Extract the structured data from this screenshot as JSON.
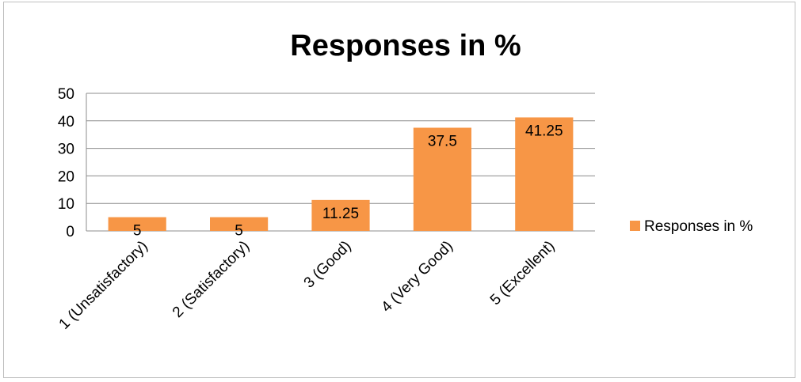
{
  "chart_data": {
    "type": "bar",
    "title": "Responses in %",
    "categories": [
      "1 (Unsatisfactory)",
      "2 (Satisfactory)",
      "3 (Good)",
      "4 (Very Good)",
      "5 (Excellent)"
    ],
    "series": [
      {
        "name": "Responses in %",
        "values": [
          5,
          5,
          11.25,
          37.5,
          41.25
        ],
        "data_labels": [
          "5",
          "5",
          "11.25",
          "37.5",
          "41.25"
        ],
        "color": "#f79646"
      }
    ],
    "yticks": [
      "0",
      "10",
      "20",
      "30",
      "40",
      "50"
    ],
    "ylim": [
      0,
      50
    ],
    "grid": true,
    "legend_position": "right"
  }
}
